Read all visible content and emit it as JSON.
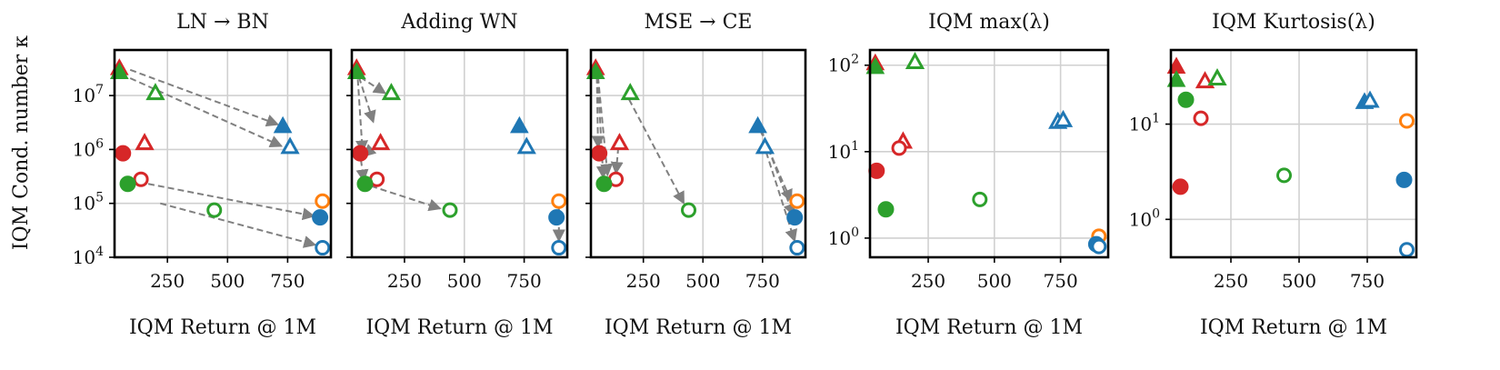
{
  "figure": {
    "y_label": "IQM Cond. number κ",
    "x_label": "IQM Return @ 1M"
  },
  "chart_data": [
    {
      "type": "scatter",
      "title": "LN → BN",
      "xlabel": "IQM Return @ 1M",
      "ylabel": "IQM Cond. number κ",
      "yscale": "log",
      "xlim": [
        30,
        930
      ],
      "ylim": [
        10000,
        70000000
      ],
      "xticks": [
        "250",
        "500",
        "750"
      ],
      "yticks": [
        "10^4",
        "10^5",
        "10^6",
        "10^7"
      ],
      "grid": true,
      "points": [
        {
          "x": 50,
          "y": 32000000,
          "color": "#d62728",
          "marker": "triangle",
          "filled": true
        },
        {
          "x": 50,
          "y": 27000000,
          "color": "#2ca02c",
          "marker": "triangle",
          "filled": true
        },
        {
          "x": 200,
          "y": 11000000,
          "color": "#2ca02c",
          "marker": "triangle",
          "filled": false
        },
        {
          "x": 730,
          "y": 2700000,
          "color": "#1f77b4",
          "marker": "triangle",
          "filled": true
        },
        {
          "x": 760,
          "y": 1100000,
          "color": "#1f77b4",
          "marker": "triangle",
          "filled": false
        },
        {
          "x": 155,
          "y": 1300000,
          "color": "#d62728",
          "marker": "triangle",
          "filled": false
        },
        {
          "x": 65,
          "y": 850000,
          "color": "#d62728",
          "marker": "circle",
          "filled": true
        },
        {
          "x": 140,
          "y": 280000,
          "color": "#d62728",
          "marker": "circle",
          "filled": false
        },
        {
          "x": 85,
          "y": 230000,
          "color": "#2ca02c",
          "marker": "circle",
          "filled": true
        },
        {
          "x": 445,
          "y": 75000,
          "color": "#2ca02c",
          "marker": "circle",
          "filled": false
        },
        {
          "x": 895,
          "y": 110000,
          "color": "#ff7f0e",
          "marker": "circle",
          "filled": false
        },
        {
          "x": 885,
          "y": 55000,
          "color": "#1f77b4",
          "marker": "circle",
          "filled": true
        },
        {
          "x": 895,
          "y": 15000,
          "color": "#1f77b4",
          "marker": "circle",
          "filled": false
        }
      ],
      "arrows": [
        {
          "from": [
            95,
            30000000
          ],
          "to": [
            710,
            2900000
          ]
        },
        {
          "from": [
            95,
            21000000
          ],
          "to": [
            725,
            1150000
          ]
        },
        {
          "from": [
            170,
            230000
          ],
          "to": [
            860,
            58000
          ]
        },
        {
          "from": [
            220,
            100000
          ],
          "to": [
            865,
            17000
          ]
        }
      ]
    },
    {
      "type": "scatter",
      "title": "Adding WN",
      "xlabel": "IQM Return @ 1M",
      "yscale": "log",
      "xlim": [
        30,
        930
      ],
      "ylim": [
        10000,
        70000000
      ],
      "xticks": [
        "250",
        "500",
        "750"
      ],
      "grid": true,
      "points": [
        {
          "x": 50,
          "y": 32000000,
          "color": "#d62728",
          "marker": "triangle",
          "filled": true
        },
        {
          "x": 50,
          "y": 27000000,
          "color": "#2ca02c",
          "marker": "triangle",
          "filled": true
        },
        {
          "x": 195,
          "y": 11000000,
          "color": "#2ca02c",
          "marker": "triangle",
          "filled": false
        },
        {
          "x": 730,
          "y": 2700000,
          "color": "#1f77b4",
          "marker": "triangle",
          "filled": true
        },
        {
          "x": 760,
          "y": 1100000,
          "color": "#1f77b4",
          "marker": "triangle",
          "filled": false
        },
        {
          "x": 150,
          "y": 1300000,
          "color": "#d62728",
          "marker": "triangle",
          "filled": false
        },
        {
          "x": 65,
          "y": 850000,
          "color": "#d62728",
          "marker": "circle",
          "filled": true
        },
        {
          "x": 135,
          "y": 280000,
          "color": "#d62728",
          "marker": "circle",
          "filled": false
        },
        {
          "x": 85,
          "y": 230000,
          "color": "#2ca02c",
          "marker": "circle",
          "filled": true
        },
        {
          "x": 440,
          "y": 75000,
          "color": "#2ca02c",
          "marker": "circle",
          "filled": false
        },
        {
          "x": 895,
          "y": 110000,
          "color": "#ff7f0e",
          "marker": "circle",
          "filled": false
        },
        {
          "x": 885,
          "y": 55000,
          "color": "#1f77b4",
          "marker": "circle",
          "filled": true
        },
        {
          "x": 895,
          "y": 15000,
          "color": "#1f77b4",
          "marker": "circle",
          "filled": false
        }
      ],
      "arrows": [
        {
          "from": [
            60,
            22000000
          ],
          "to": [
            120,
            3200000
          ]
        },
        {
          "from": [
            65,
            22000000
          ],
          "to": [
            170,
            11000000
          ]
        },
        {
          "from": [
            55,
            20000000
          ],
          "to": [
            75,
            900000
          ]
        },
        {
          "from": [
            140,
            1300000
          ],
          "to": [
            80,
            750000
          ]
        },
        {
          "from": [
            68,
            650000
          ],
          "to": [
            80,
            260000
          ]
        },
        {
          "from": [
            110,
            210000
          ],
          "to": [
            400,
            80000
          ]
        },
        {
          "from": [
            895,
            85000
          ],
          "to": [
            895,
            20000
          ]
        }
      ]
    },
    {
      "type": "scatter",
      "title": "MSE → CE",
      "xlabel": "IQM Return @ 1M",
      "yscale": "log",
      "xlim": [
        30,
        930
      ],
      "ylim": [
        10000,
        70000000
      ],
      "xticks": [
        "250",
        "500",
        "750"
      ],
      "grid": true,
      "points": [
        {
          "x": 50,
          "y": 32000000,
          "color": "#d62728",
          "marker": "triangle",
          "filled": true
        },
        {
          "x": 50,
          "y": 27000000,
          "color": "#2ca02c",
          "marker": "triangle",
          "filled": true
        },
        {
          "x": 195,
          "y": 11000000,
          "color": "#2ca02c",
          "marker": "triangle",
          "filled": false
        },
        {
          "x": 730,
          "y": 2700000,
          "color": "#1f77b4",
          "marker": "triangle",
          "filled": true
        },
        {
          "x": 760,
          "y": 1100000,
          "color": "#1f77b4",
          "marker": "triangle",
          "filled": false
        },
        {
          "x": 150,
          "y": 1300000,
          "color": "#d62728",
          "marker": "triangle",
          "filled": false
        },
        {
          "x": 65,
          "y": 850000,
          "color": "#d62728",
          "marker": "circle",
          "filled": true
        },
        {
          "x": 135,
          "y": 280000,
          "color": "#d62728",
          "marker": "circle",
          "filled": false
        },
        {
          "x": 85,
          "y": 230000,
          "color": "#2ca02c",
          "marker": "circle",
          "filled": true
        },
        {
          "x": 440,
          "y": 75000,
          "color": "#2ca02c",
          "marker": "circle",
          "filled": false
        },
        {
          "x": 895,
          "y": 110000,
          "color": "#ff7f0e",
          "marker": "circle",
          "filled": false
        },
        {
          "x": 885,
          "y": 55000,
          "color": "#1f77b4",
          "marker": "circle",
          "filled": true
        },
        {
          "x": 895,
          "y": 15000,
          "color": "#1f77b4",
          "marker": "circle",
          "filled": false
        }
      ],
      "arrows": [
        {
          "from": [
            55,
            22000000
          ],
          "to": [
            60,
            1100000
          ]
        },
        {
          "from": [
            58,
            22000000
          ],
          "to": [
            82,
            300000
          ]
        },
        {
          "from": [
            60,
            22000000
          ],
          "to": [
            100,
            330000
          ]
        },
        {
          "from": [
            145,
            1100000
          ],
          "to": [
            135,
            360000
          ]
        },
        {
          "from": [
            190,
            8500000
          ],
          "to": [
            420,
            100000
          ]
        },
        {
          "from": [
            740,
            2300000
          ],
          "to": [
            870,
            110000
          ]
        },
        {
          "from": [
            745,
            2300000
          ],
          "to": [
            880,
            60000
          ]
        },
        {
          "from": [
            765,
            900000
          ],
          "to": [
            885,
            20000
          ]
        }
      ]
    },
    {
      "type": "scatter",
      "title": "IQM max(λ)",
      "xlabel": "IQM Return @ 1M",
      "yscale": "log",
      "xlim": [
        30,
        930
      ],
      "ylim": [
        0.6,
        150
      ],
      "xticks": [
        "250",
        "500",
        "750"
      ],
      "yticks": [
        "10^0",
        "10^1",
        "10^2"
      ],
      "grid": true,
      "points": [
        {
          "x": 50,
          "y": 105,
          "color": "#d62728",
          "marker": "triangle",
          "filled": true
        },
        {
          "x": 50,
          "y": 95,
          "color": "#2ca02c",
          "marker": "triangle",
          "filled": true
        },
        {
          "x": 200,
          "y": 108,
          "color": "#2ca02c",
          "marker": "triangle",
          "filled": false
        },
        {
          "x": 740,
          "y": 22,
          "color": "#1f77b4",
          "marker": "triangle",
          "filled": false
        },
        {
          "x": 760,
          "y": 23,
          "color": "#1f77b4",
          "marker": "triangle",
          "filled": false
        },
        {
          "x": 155,
          "y": 13,
          "color": "#d62728",
          "marker": "triangle",
          "filled": false
        },
        {
          "x": 140,
          "y": 11,
          "color": "#d62728",
          "marker": "circle",
          "filled": false
        },
        {
          "x": 55,
          "y": 6,
          "color": "#d62728",
          "marker": "circle",
          "filled": true
        },
        {
          "x": 90,
          "y": 2.15,
          "color": "#2ca02c",
          "marker": "circle",
          "filled": true
        },
        {
          "x": 445,
          "y": 2.8,
          "color": "#2ca02c",
          "marker": "circle",
          "filled": false
        },
        {
          "x": 895,
          "y": 1.05,
          "color": "#ff7f0e",
          "marker": "circle",
          "filled": false
        },
        {
          "x": 885,
          "y": 0.85,
          "color": "#1f77b4",
          "marker": "circle",
          "filled": true
        },
        {
          "x": 895,
          "y": 0.8,
          "color": "#1f77b4",
          "marker": "circle",
          "filled": false
        }
      ],
      "arrows": []
    },
    {
      "type": "scatter",
      "title": "IQM Kurtosis(λ)",
      "xlabel": "IQM Return @ 1M",
      "yscale": "log",
      "xlim": [
        30,
        930
      ],
      "ylim": [
        0.4,
        60
      ],
      "xticks": [
        "250",
        "500",
        "750"
      ],
      "yticks": [
        "10^0",
        "10^1"
      ],
      "grid": true,
      "points": [
        {
          "x": 50,
          "y": 40,
          "color": "#d62728",
          "marker": "triangle",
          "filled": true
        },
        {
          "x": 50,
          "y": 29,
          "color": "#2ca02c",
          "marker": "triangle",
          "filled": true
        },
        {
          "x": 155,
          "y": 28,
          "color": "#d62728",
          "marker": "triangle",
          "filled": false
        },
        {
          "x": 200,
          "y": 30,
          "color": "#2ca02c",
          "marker": "triangle",
          "filled": false
        },
        {
          "x": 85,
          "y": 18,
          "color": "#2ca02c",
          "marker": "circle",
          "filled": true
        },
        {
          "x": 740,
          "y": 17,
          "color": "#1f77b4",
          "marker": "triangle",
          "filled": true
        },
        {
          "x": 760,
          "y": 17.5,
          "color": "#1f77b4",
          "marker": "triangle",
          "filled": false
        },
        {
          "x": 140,
          "y": 11.5,
          "color": "#d62728",
          "marker": "circle",
          "filled": false
        },
        {
          "x": 895,
          "y": 10.8,
          "color": "#ff7f0e",
          "marker": "circle",
          "filled": false
        },
        {
          "x": 445,
          "y": 2.9,
          "color": "#2ca02c",
          "marker": "circle",
          "filled": false
        },
        {
          "x": 885,
          "y": 2.6,
          "color": "#1f77b4",
          "marker": "circle",
          "filled": true
        },
        {
          "x": 65,
          "y": 2.2,
          "color": "#d62728",
          "marker": "circle",
          "filled": true
        },
        {
          "x": 895,
          "y": 0.48,
          "color": "#1f77b4",
          "marker": "circle",
          "filled": false
        }
      ],
      "arrows": []
    }
  ]
}
